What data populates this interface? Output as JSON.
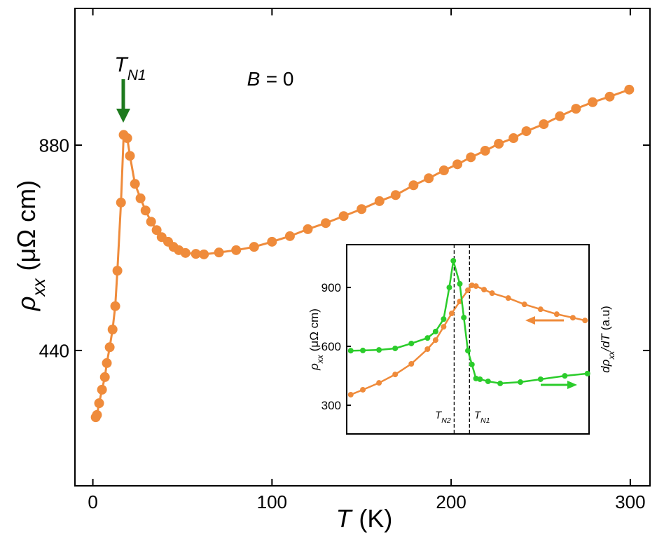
{
  "chart_data": [
    {
      "type": "line",
      "xlabel": {
        "symbol": "T",
        "unit": "(K)"
      },
      "ylabel": {
        "symbol": "ρ",
        "sub": "xx",
        "unit": "(μΩ cm)"
      },
      "annotations": [
        {
          "symbol": "T",
          "sub": "N1"
        },
        {
          "symbol": "B",
          "rest": "= 0"
        }
      ],
      "xlim": [
        -10,
        311
      ],
      "ylim": [
        150,
        1173
      ],
      "xticks": [
        0,
        100,
        200,
        300
      ],
      "yticks": [
        440,
        880
      ],
      "x": [
        1.6,
        2.3,
        3.5,
        5.1,
        6.7,
        7.8,
        9.4,
        11,
        12.5,
        13.7,
        15.7,
        17.2,
        19.2,
        20.7,
        23.5,
        26.6,
        29.4,
        32.5,
        35.6,
        38.4,
        42,
        45,
        48,
        51.7,
        57.5,
        62,
        70.4,
        80,
        90,
        100,
        110,
        120,
        130,
        140,
        150,
        160,
        169,
        179,
        187.5,
        196,
        203.5,
        211,
        219,
        226.6,
        234.8,
        242,
        251.7,
        260.7,
        269.7,
        279,
        288.5,
        299.4
      ],
      "series": [
        {
          "color": "#ef8b3b",
          "values": [
            297,
            302,
            327,
            356,
            383,
            413,
            447,
            485,
            535,
            611,
            757,
            902,
            895,
            857,
            797,
            766,
            740,
            716,
            698,
            683,
            673,
            662,
            655,
            649,
            647,
            646,
            650,
            655,
            662,
            673,
            685,
            700,
            713,
            728,
            743,
            760,
            773,
            794,
            809,
            826,
            839,
            854,
            868,
            883,
            895,
            910,
            925,
            942,
            958,
            972,
            984,
            999
          ]
        }
      ]
    },
    {
      "type": "line",
      "ylabel": {
        "symbol": "ρ",
        "sub": "xx",
        "unit": "(μΩ cm)"
      },
      "y2label": {
        "pre": "dρ",
        "sub": "xx",
        "mid": "/d",
        "symbol": "T",
        "unit": "(a.u)"
      },
      "xlim": [
        0,
        30
      ],
      "ylim": [
        154,
        1118
      ],
      "y2lim": [
        0,
        1
      ],
      "yticks": [
        300,
        600,
        900
      ],
      "vlines": [
        {
          "value": 13.3,
          "label": {
            "symbol": "T",
            "sub": "N2"
          }
        },
        {
          "value": 15.2,
          "label": {
            "symbol": "T",
            "sub": "N1"
          }
        }
      ],
      "series": [
        {
          "color": "#ef8b3b",
          "x": [
            0.5,
            2,
            4,
            6,
            8,
            10,
            11,
            12,
            13,
            14,
            15,
            15.5,
            16,
            17,
            18,
            20,
            22,
            24,
            26,
            28,
            29.5
          ],
          "values": [
            354,
            379,
            414,
            457,
            511,
            586,
            632,
            700,
            768,
            829,
            886,
            911,
            907,
            889,
            871,
            846,
            814,
            789,
            764,
            746,
            732
          ]
        },
        {
          "color": "#2bcc2b",
          "axis": "y2",
          "x": [
            0.5,
            2,
            4,
            6,
            8,
            10,
            11,
            12,
            12.7,
            13.2,
            14,
            14.5,
            15,
            15.5,
            16,
            16.5,
            17.5,
            19,
            21.5,
            24,
            27,
            29.8
          ],
          "values": [
            0.44,
            0.441,
            0.444,
            0.452,
            0.478,
            0.507,
            0.541,
            0.607,
            0.774,
            0.915,
            0.793,
            0.615,
            0.44,
            0.367,
            0.293,
            0.289,
            0.278,
            0.267,
            0.274,
            0.289,
            0.307,
            0.319
          ]
        }
      ]
    }
  ]
}
